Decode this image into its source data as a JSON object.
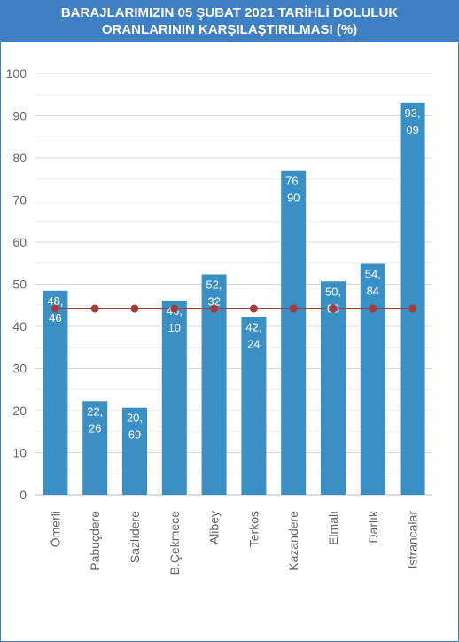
{
  "header": {
    "title_line1": "BARAJLARIMIZIN 05 ŞUBAT 2021 TARİHLİ DOLULUK",
    "title_line2": "ORANLARININ KARŞILAŞTIRILMASI (%)"
  },
  "chart_data": {
    "type": "bar",
    "title": "BARAJLARIMIZIN 05 ŞUBAT 2021 TARİHLİ DOLULUK ORANLARININ KARŞILAŞTIRILMASI (%)",
    "categories": [
      "Ömerli",
      "Pabuçdere",
      "Sazlıdere",
      "B.Çekmece",
      "Alibey",
      "Terkos",
      "Kazandere",
      "Elmalı",
      "Darlık",
      "Istrancalar"
    ],
    "series": [
      {
        "type": "bar",
        "values": [
          48.46,
          22.26,
          20.69,
          46.1,
          52.32,
          42.24,
          76.9,
          50.68,
          54.84,
          93.09
        ],
        "labels": [
          [
            "48,",
            "46"
          ],
          [
            "22,",
            "26"
          ],
          [
            "20,",
            "69"
          ],
          [
            "46,",
            "10"
          ],
          [
            "52,",
            "32"
          ],
          [
            "42,",
            "24"
          ],
          [
            "76,",
            "90"
          ],
          [
            "50,",
            "68"
          ],
          [
            "54,",
            "84"
          ],
          [
            "93,",
            "09"
          ]
        ],
        "color": "#3a8fc4"
      },
      {
        "type": "line",
        "values": [
          44.2,
          44.2,
          44.2,
          44.2,
          44.2,
          44.2,
          44.2,
          44.2,
          44.2,
          44.2
        ],
        "color": "#a83a3a"
      }
    ],
    "ylim": [
      0,
      100
    ],
    "yticks": [
      "0",
      "10",
      "20",
      "30",
      "40",
      "50",
      "60",
      "70",
      "80",
      "90",
      "100"
    ],
    "grid": true,
    "legend": "none"
  }
}
